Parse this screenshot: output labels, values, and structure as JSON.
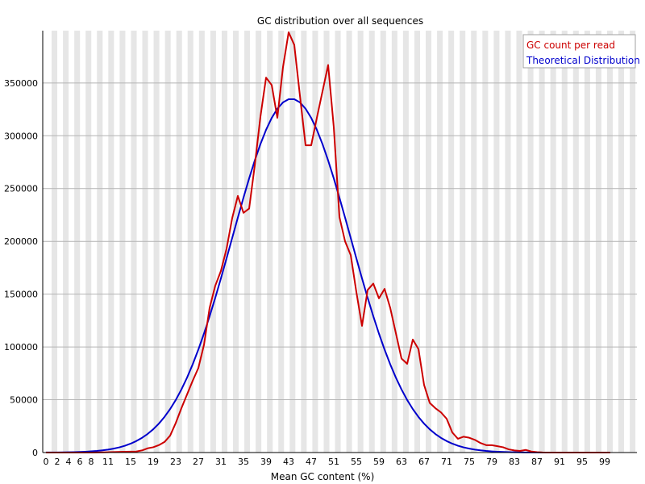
{
  "chart_data": {
    "type": "line",
    "title": "GC distribution over all sequences",
    "xlabel": "Mean GC content (%)",
    "ylabel": "",
    "xlim": [
      0,
      100
    ],
    "ylim": [
      0,
      398000
    ],
    "x_ticks": [
      "0",
      "2",
      "4",
      "6",
      "8",
      "11",
      "15",
      "19",
      "23",
      "27",
      "31",
      "35",
      "39",
      "43",
      "47",
      "51",
      "55",
      "59",
      "63",
      "67",
      "71",
      "75",
      "79",
      "83",
      "87",
      "91",
      "95",
      "99"
    ],
    "y_ticks": [
      "0",
      "50000",
      "100000",
      "150000",
      "200000",
      "250000",
      "300000",
      "350000"
    ],
    "legend_position": "top-right",
    "grid": true,
    "series": [
      {
        "name": "GC count per read",
        "color": "#cc0000",
        "points": [
          [
            0,
            0
          ],
          [
            2,
            0
          ],
          [
            4,
            0
          ],
          [
            6,
            0
          ],
          [
            8,
            0
          ],
          [
            10,
            200
          ],
          [
            12,
            500
          ],
          [
            14,
            800
          ],
          [
            16,
            1000
          ],
          [
            17,
            2000
          ],
          [
            18,
            4000
          ],
          [
            19,
            5000
          ],
          [
            20,
            7000
          ],
          [
            21,
            10000
          ],
          [
            22,
            16000
          ],
          [
            23,
            28000
          ],
          [
            24,
            42000
          ],
          [
            25,
            55000
          ],
          [
            26,
            68000
          ],
          [
            27,
            80000
          ],
          [
            28,
            102000
          ],
          [
            29,
            137000
          ],
          [
            30,
            158000
          ],
          [
            31,
            172000
          ],
          [
            32,
            193000
          ],
          [
            33,
            222000
          ],
          [
            34,
            243000
          ],
          [
            35,
            227000
          ],
          [
            36,
            231000
          ],
          [
            37,
            272000
          ],
          [
            38,
            318000
          ],
          [
            39,
            355000
          ],
          [
            40,
            348000
          ],
          [
            41,
            317000
          ],
          [
            42,
            365000
          ],
          [
            43,
            398000
          ],
          [
            44,
            386000
          ],
          [
            45,
            338000
          ],
          [
            46,
            291000
          ],
          [
            47,
            291000
          ],
          [
            48,
            317000
          ],
          [
            49,
            342000
          ],
          [
            50,
            367000
          ],
          [
            51,
            308000
          ],
          [
            52,
            223000
          ],
          [
            53,
            200000
          ],
          [
            54,
            187000
          ],
          [
            55,
            152000
          ],
          [
            56,
            120000
          ],
          [
            57,
            154000
          ],
          [
            58,
            160000
          ],
          [
            59,
            146000
          ],
          [
            60,
            155000
          ],
          [
            61,
            137000
          ],
          [
            62,
            113000
          ],
          [
            63,
            89000
          ],
          [
            64,
            84000
          ],
          [
            65,
            107000
          ],
          [
            66,
            98000
          ],
          [
            67,
            64000
          ],
          [
            68,
            47000
          ],
          [
            69,
            42000
          ],
          [
            70,
            38000
          ],
          [
            71,
            32000
          ],
          [
            72,
            19000
          ],
          [
            73,
            13000
          ],
          [
            74,
            15000
          ],
          [
            75,
            14000
          ],
          [
            76,
            12000
          ],
          [
            77,
            9000
          ],
          [
            78,
            7000
          ],
          [
            79,
            7000
          ],
          [
            80,
            6000
          ],
          [
            81,
            5000
          ],
          [
            82,
            3000
          ],
          [
            83,
            2000
          ],
          [
            84,
            1500
          ],
          [
            85,
            2500
          ],
          [
            86,
            1000
          ],
          [
            87,
            400
          ],
          [
            88,
            100
          ],
          [
            90,
            0
          ],
          [
            92,
            0
          ],
          [
            94,
            0
          ],
          [
            96,
            0
          ],
          [
            98,
            0
          ],
          [
            100,
            0
          ]
        ]
      },
      {
        "name": "Theoretical Distribution",
        "color": "#0000cc",
        "mean": 43.5,
        "sd": 10.5,
        "peak": 335000
      }
    ]
  }
}
